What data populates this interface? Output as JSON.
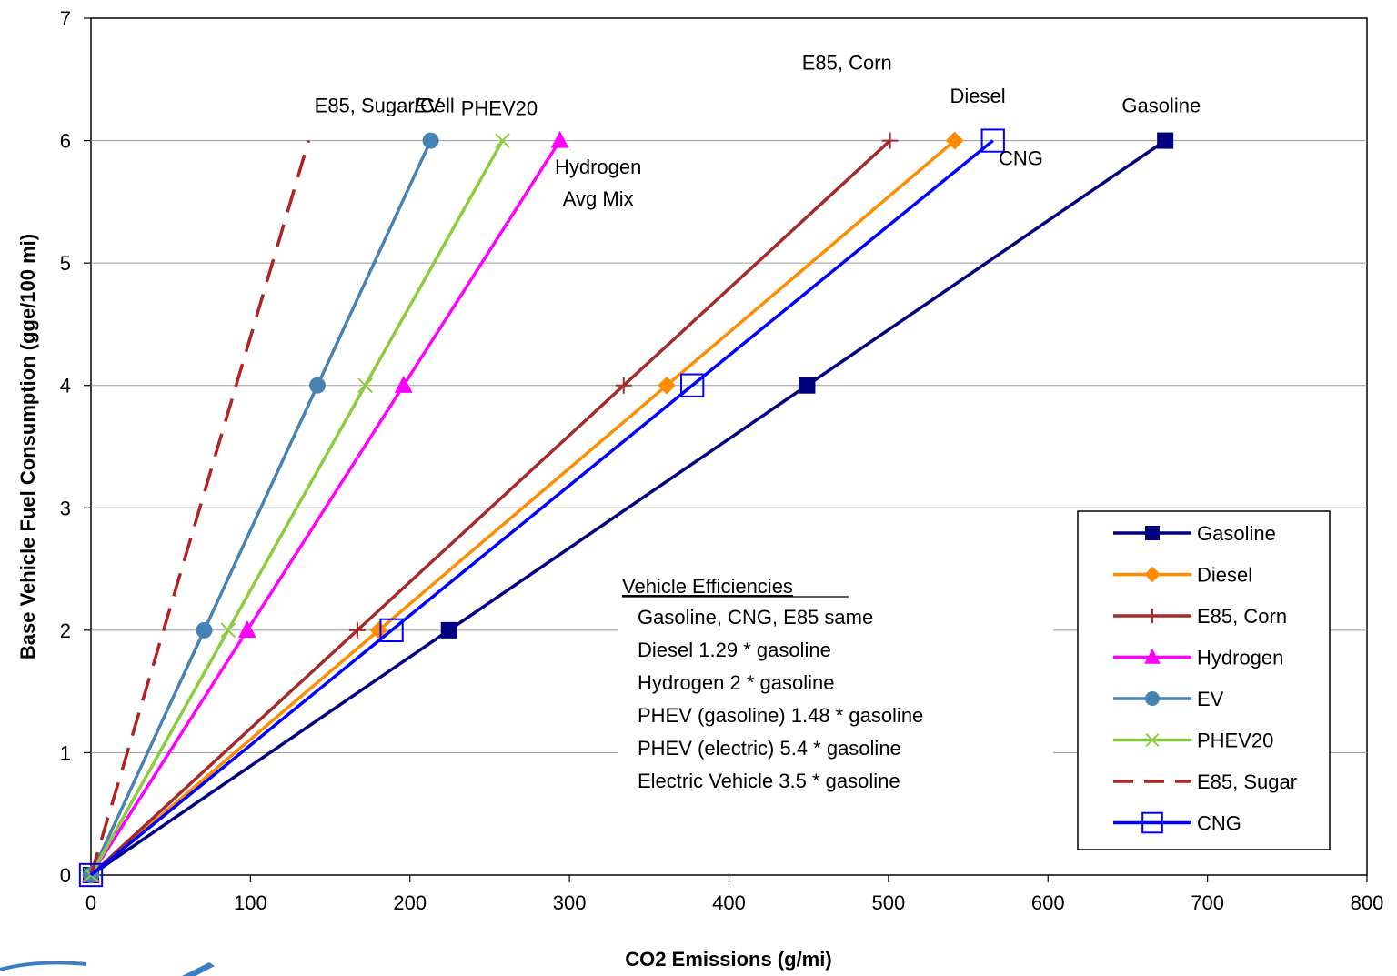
{
  "chart_data": {
    "type": "line",
    "xlabel": "CO2 Emissions (g/mi)",
    "ylabel": "Base Vehicle Fuel Consumption (gge/100 mi)",
    "xlim": [
      0,
      800
    ],
    "ylim": [
      0,
      7
    ],
    "xticks": [
      0,
      100,
      200,
      300,
      400,
      500,
      600,
      700,
      800
    ],
    "yticks": [
      0,
      1,
      2,
      3,
      4,
      5,
      6,
      7
    ],
    "grid": "horizontal",
    "legend_position": "bottom-right",
    "series": [
      {
        "name": "Gasoline",
        "color": "#000080",
        "marker": "square-filled",
        "dash": false,
        "points": [
          [
            0,
            0
          ],
          [
            224.5,
            2
          ],
          [
            449,
            4
          ],
          [
            673.5,
            6
          ]
        ]
      },
      {
        "name": "Diesel",
        "color": "#ff8c00",
        "marker": "diamond",
        "dash": false,
        "points": [
          [
            0,
            0
          ],
          [
            180.5,
            2
          ],
          [
            361,
            4
          ],
          [
            541.5,
            6
          ]
        ]
      },
      {
        "name": "E85, Corn",
        "color": "#a52a2a",
        "marker": "plus",
        "dash": false,
        "points": [
          [
            0,
            0
          ],
          [
            167,
            2
          ],
          [
            334,
            4
          ],
          [
            501,
            6
          ]
        ]
      },
      {
        "name": "Hydrogen",
        "color": "#ff00ff",
        "marker": "triangle",
        "dash": false,
        "points": [
          [
            0,
            0
          ],
          [
            98,
            2
          ],
          [
            196,
            4
          ],
          [
            294,
            6
          ]
        ]
      },
      {
        "name": "EV",
        "color": "#4682b4",
        "marker": "circle",
        "dash": false,
        "points": [
          [
            0,
            0
          ],
          [
            71,
            2
          ],
          [
            142,
            4
          ],
          [
            213,
            6
          ]
        ]
      },
      {
        "name": "PHEV20",
        "color": "#8ccc3c",
        "marker": "x",
        "dash": false,
        "points": [
          [
            0,
            0
          ],
          [
            86,
            2
          ],
          [
            172,
            4
          ],
          [
            258,
            6
          ]
        ]
      },
      {
        "name": "E85, Sugar",
        "color": "#b22222",
        "marker": "none",
        "dash": true,
        "points": [
          [
            0,
            0
          ],
          [
            45.5,
            2
          ],
          [
            91,
            4
          ],
          [
            136.5,
            6
          ]
        ]
      },
      {
        "name": "CNG",
        "color": "#0000ff",
        "marker": "square-open",
        "dash": false,
        "points": [
          [
            0,
            0
          ],
          [
            188.5,
            2
          ],
          [
            377,
            4
          ],
          [
            565.5,
            6
          ]
        ]
      }
    ],
    "annotations": [
      {
        "text": "E85, Corn",
        "x": 474,
        "y": 6.58
      },
      {
        "text": "E85, Sugar/Cell",
        "x": 184,
        "y": 6.23
      },
      {
        "text": "EV",
        "x": 211,
        "y": 6.23
      },
      {
        "text": "PHEV20",
        "x": 256,
        "y": 6.21
      },
      {
        "text": "Diesel",
        "x": 556,
        "y": 6.31
      },
      {
        "text": "Gasoline",
        "x": 671,
        "y": 6.23
      },
      {
        "text": "Hydrogen",
        "x": 318,
        "y": 5.73
      },
      {
        "text": "Avg Mix",
        "x": 318,
        "y": 5.47
      },
      {
        "text": "CNG",
        "x": 583,
        "y": 5.8
      }
    ],
    "efficiencies": {
      "heading": "Vehicle Efficiencies",
      "lines": [
        "Gasoline, CNG, E85 same",
        "Diesel 1.29 * gasoline",
        "Hydrogen 2 * gasoline",
        "PHEV (gasoline) 1.48 * gasoline",
        "PHEV (electric) 5.4 * gasoline",
        "Electric Vehicle 3.5 * gasoline"
      ]
    }
  }
}
